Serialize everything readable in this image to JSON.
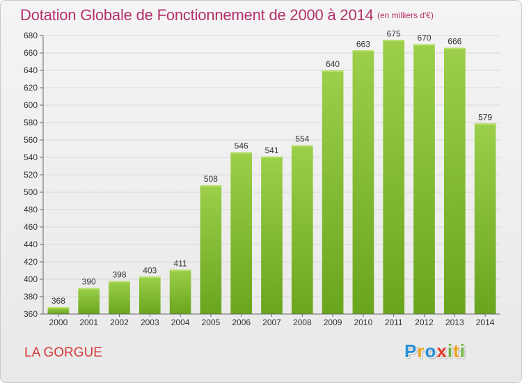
{
  "chart_data": {
    "type": "bar",
    "title": "Dotation Globale de Fonctionnement de 2000 à 2014",
    "subtitle": "(en milliers d'€)",
    "categories": [
      "2000",
      "2001",
      "2002",
      "2003",
      "2004",
      "2005",
      "2006",
      "2007",
      "2008",
      "2009",
      "2010",
      "2011",
      "2012",
      "2013",
      "2014"
    ],
    "values": [
      368,
      390,
      398,
      403,
      411,
      508,
      546,
      541,
      554,
      640,
      663,
      675,
      670,
      666,
      579
    ],
    "data_labels": [
      "368",
      "390",
      "398",
      "403",
      "411",
      "508",
      "546",
      "541",
      "554",
      "640",
      "663",
      "675",
      "670",
      "666",
      "579"
    ],
    "ylim": [
      360,
      680
    ],
    "yticks": [
      360,
      380,
      400,
      420,
      440,
      460,
      480,
      500,
      520,
      540,
      560,
      580,
      600,
      620,
      640,
      660,
      680
    ],
    "ytick_labels": [
      "360",
      "380",
      "400",
      "420",
      "440",
      "460",
      "480",
      "500",
      "520",
      "540",
      "560",
      "580",
      "600",
      "620",
      "640",
      "660",
      "680"
    ],
    "xlabel": "",
    "ylabel": "",
    "grid": true,
    "legend": "none",
    "bar_color_top": "#9ccf4a",
    "bar_color_bottom": "#6aa51e"
  },
  "footer": {
    "commune": "LA GORGUE",
    "logo_letters": [
      {
        "char": "P",
        "color": "#2a8fd6"
      },
      {
        "char": "r",
        "color": "#e8a21a"
      },
      {
        "char": "o",
        "color": "#2a8fd6"
      },
      {
        "char": "x",
        "color": "#e0392b"
      },
      {
        "char": "i",
        "color": "#6cb33e"
      },
      {
        "char": "t",
        "color": "#e8a21a"
      },
      {
        "char": "i",
        "color": "#6cb33e"
      }
    ]
  }
}
